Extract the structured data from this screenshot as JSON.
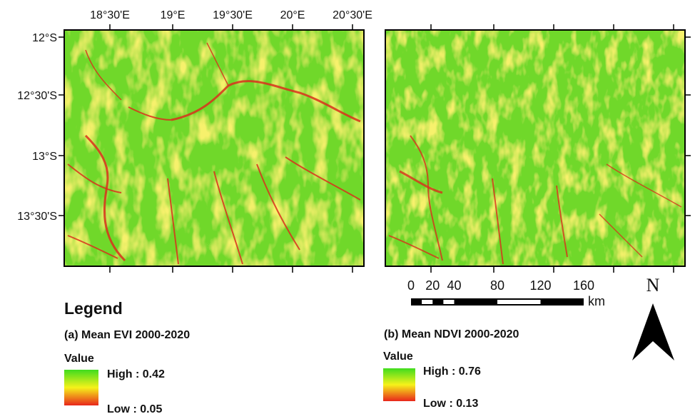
{
  "map": {
    "lon_ticks": [
      "18°30'E",
      "19°E",
      "19°30'E",
      "20°E",
      "20°30'E"
    ],
    "lat_ticks": [
      "12°S",
      "12°30'S",
      "13°S",
      "13°30'S"
    ]
  },
  "legend": {
    "title": "Legend",
    "panel_a": {
      "title": "(a) Mean EVI 2000-2020",
      "value_label": "Value",
      "high": "High : 0.42",
      "low": "Low : 0.05"
    },
    "panel_b": {
      "title": "(b) Mean NDVI 2000-2020",
      "value_label": "Value",
      "high": "High : 0.76",
      "low": "Low : 0.13"
    }
  },
  "scale_bar": {
    "ticks": [
      0,
      20,
      40,
      80,
      120,
      160
    ],
    "unit": "km"
  },
  "north_arrow": "N"
}
